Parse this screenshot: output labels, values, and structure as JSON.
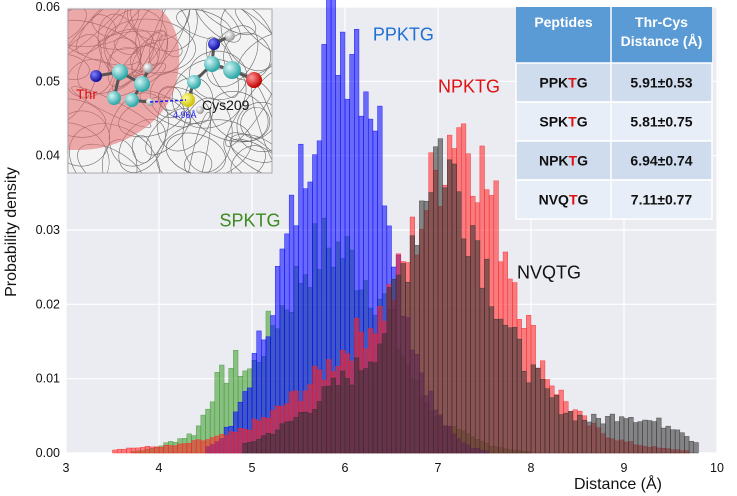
{
  "chart_data": {
    "type": "bar",
    "title": "",
    "xlabel": "Distance (Å)",
    "ylabel": "Probability density",
    "xlim": [
      3,
      10
    ],
    "ylim": [
      0,
      0.06
    ],
    "xticks": [
      "3",
      "4",
      "5",
      "6",
      "7",
      "8",
      "9",
      "10"
    ],
    "yticks": [
      "0.00",
      "0.01",
      "0.02",
      "0.03",
      "0.04",
      "0.05",
      "0.06"
    ],
    "grid": true,
    "bin_width": 0.05,
    "series": [
      {
        "name": "SPKTG",
        "color": "#3a9a2a",
        "peaks": [
          [
            3.9,
            0.0005
          ],
          [
            4.2,
            0.0018
          ],
          [
            4.4,
            0.0028
          ],
          [
            4.6,
            0.009
          ],
          [
            4.8,
            0.012
          ],
          [
            5.0,
            0.011
          ],
          [
            5.2,
            0.017
          ],
          [
            5.4,
            0.021
          ],
          [
            5.6,
            0.026
          ],
          [
            5.8,
            0.028
          ],
          [
            6.0,
            0.027
          ],
          [
            6.2,
            0.024
          ],
          [
            6.4,
            0.021
          ],
          [
            6.6,
            0.014
          ],
          [
            6.8,
            0.008
          ],
          [
            7.0,
            0.005
          ],
          [
            7.2,
            0.003
          ],
          [
            7.4,
            0.0018
          ],
          [
            7.6,
            0.001
          ],
          [
            7.8,
            0.0004
          ]
        ],
        "range": [
          3.5,
          8.0
        ]
      },
      {
        "name": "PPKTG",
        "color": "#0000ff",
        "peaks": [
          [
            4.6,
            0.0012
          ],
          [
            4.8,
            0.004
          ],
          [
            5.0,
            0.011
          ],
          [
            5.2,
            0.02
          ],
          [
            5.4,
            0.029
          ],
          [
            5.6,
            0.042
          ],
          [
            5.8,
            0.056
          ],
          [
            5.9,
            0.059
          ],
          [
            6.0,
            0.056
          ],
          [
            6.1,
            0.059
          ],
          [
            6.2,
            0.052
          ],
          [
            6.3,
            0.049
          ],
          [
            6.4,
            0.04
          ],
          [
            6.5,
            0.033
          ],
          [
            6.6,
            0.023
          ],
          [
            6.8,
            0.012
          ],
          [
            7.0,
            0.005
          ],
          [
            7.2,
            0.002
          ],
          [
            7.4,
            0.0006
          ]
        ],
        "range": [
          4.5,
          7.5
        ]
      },
      {
        "name": "NPKTG",
        "color": "#ff2020",
        "peaks": [
          [
            3.6,
            0.0006
          ],
          [
            4.2,
            0.001
          ],
          [
            4.8,
            0.0025
          ],
          [
            5.2,
            0.005
          ],
          [
            5.6,
            0.009
          ],
          [
            6.0,
            0.014
          ],
          [
            6.4,
            0.019
          ],
          [
            6.6,
            0.024
          ],
          [
            6.8,
            0.031
          ],
          [
            7.0,
            0.038
          ],
          [
            7.2,
            0.046
          ],
          [
            7.4,
            0.041
          ],
          [
            7.6,
            0.033
          ],
          [
            7.8,
            0.025
          ],
          [
            8.0,
            0.016
          ],
          [
            8.2,
            0.01
          ],
          [
            8.4,
            0.0065
          ],
          [
            8.6,
            0.004
          ],
          [
            8.8,
            0.0025
          ],
          [
            9.0,
            0.0015
          ],
          [
            9.2,
            0.001
          ],
          [
            9.4,
            0.0006
          ],
          [
            9.6,
            0.0004
          ]
        ],
        "range": [
          3.5,
          9.7
        ]
      },
      {
        "name": "NVQTG",
        "color": "#303030",
        "peaks": [
          [
            5.0,
            0.0015
          ],
          [
            5.4,
            0.004
          ],
          [
            5.8,
            0.008
          ],
          [
            6.2,
            0.012
          ],
          [
            6.4,
            0.016
          ],
          [
            6.6,
            0.024
          ],
          [
            6.8,
            0.033
          ],
          [
            7.0,
            0.042
          ],
          [
            7.2,
            0.036
          ],
          [
            7.4,
            0.03
          ],
          [
            7.6,
            0.022
          ],
          [
            7.8,
            0.015
          ],
          [
            8.0,
            0.011
          ],
          [
            8.2,
            0.0075
          ],
          [
            8.4,
            0.0055
          ],
          [
            8.6,
            0.0045
          ],
          [
            8.8,
            0.0045
          ],
          [
            9.0,
            0.0055
          ],
          [
            9.2,
            0.0045
          ],
          [
            9.4,
            0.004
          ],
          [
            9.6,
            0.0035
          ],
          [
            9.7,
            0.002
          ]
        ],
        "range": [
          4.9,
          9.8
        ]
      }
    ],
    "series_labels": [
      {
        "name": "PPKTG",
        "text": "PPKTG",
        "color": "#1f6fd6",
        "x": 6.3,
        "y": 0.0555
      },
      {
        "name": "NPKTG",
        "text": "NPKTG",
        "color": "#e01010",
        "x": 7.0,
        "y": 0.0485
      },
      {
        "name": "SPKTG",
        "text": "SPKTG",
        "color": "#3c8a1e",
        "x": 4.65,
        "y": 0.0305
      },
      {
        "name": "NVQTG",
        "text": "NVQTG",
        "color": "#111111",
        "x": 7.85,
        "y": 0.0235
      }
    ]
  },
  "table": {
    "header": [
      "Peptides",
      "Thr-Cys\nDistance (Å)"
    ],
    "rows": [
      {
        "prefix": "PPK",
        "mark": "T",
        "suffix": "G",
        "value": "5.91±0.53"
      },
      {
        "prefix": "SPK",
        "mark": "T",
        "suffix": "G",
        "value": "5.81±0.75"
      },
      {
        "prefix": "NPK",
        "mark": "T",
        "suffix": "G",
        "value": "6.94±0.74"
      },
      {
        "prefix": "NVQ",
        "mark": "T",
        "suffix": "G",
        "value": "7.11±0.77"
      }
    ],
    "header_color": "#5b9bd5",
    "row_colors": [
      "#cfdcee",
      "#e8eef7"
    ],
    "mark_color": "#e01010"
  },
  "inset": {
    "label_thr": "Thr",
    "label_cys": "Cys209",
    "distance": "4.96Å"
  }
}
